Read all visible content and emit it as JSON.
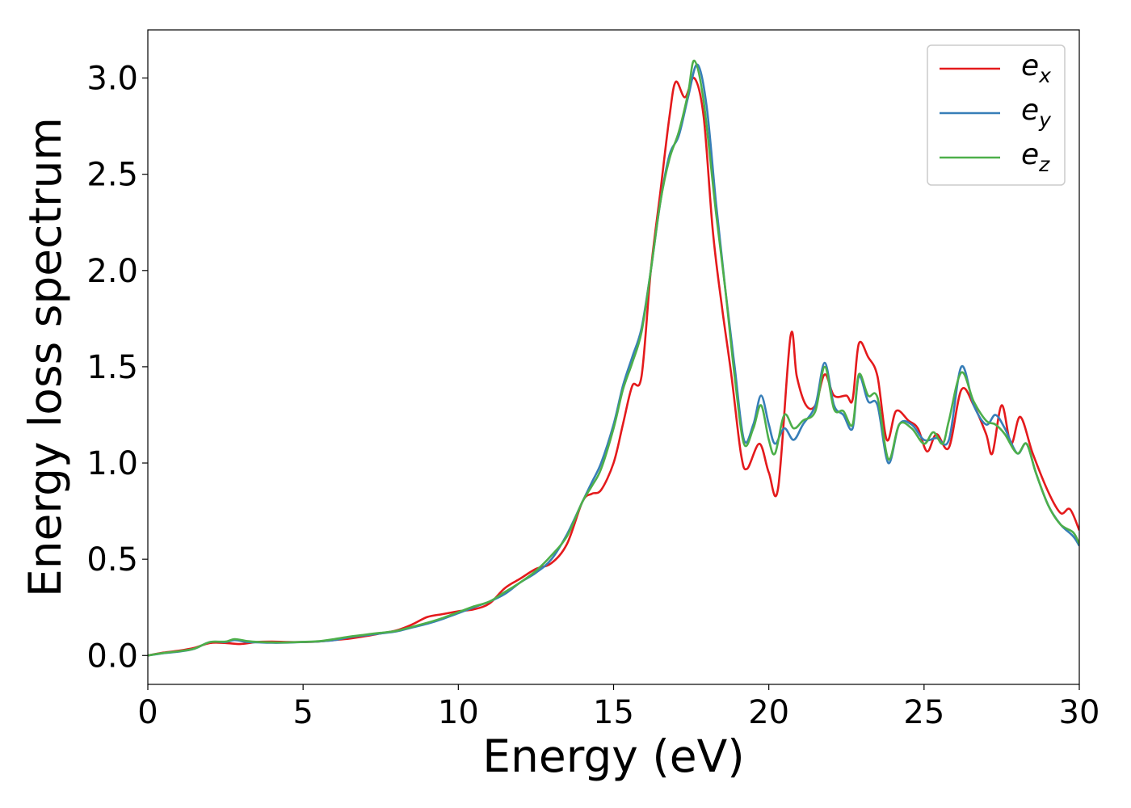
{
  "chart_data": {
    "type": "line",
    "xlabel": "Energy (eV)",
    "ylabel": "Energy loss spectrum",
    "xlim": [
      0,
      30
    ],
    "ylim": [
      -0.15,
      3.25
    ],
    "xticks": [
      0,
      5,
      10,
      15,
      20,
      25,
      30
    ],
    "xtick_labels": [
      "0",
      "5",
      "10",
      "15",
      "20",
      "25",
      "30"
    ],
    "yticks": [
      0.0,
      0.5,
      1.0,
      1.5,
      2.0,
      2.5,
      3.0
    ],
    "ytick_labels": [
      "0.0",
      "0.5",
      "1.0",
      "1.5",
      "2.0",
      "2.5",
      "3.0"
    ],
    "grid": false,
    "legend_position": "top-right",
    "series": [
      {
        "name": "e_x",
        "label_main": "e",
        "label_sub": "x",
        "color": "#e41a1c",
        "points": [
          [
            0,
            0
          ],
          [
            0.5,
            0.015
          ],
          [
            1,
            0.025
          ],
          [
            1.5,
            0.04
          ],
          [
            2,
            0.065
          ],
          [
            2.5,
            0.065
          ],
          [
            3,
            0.06
          ],
          [
            3.5,
            0.07
          ],
          [
            4,
            0.072
          ],
          [
            4.5,
            0.07
          ],
          [
            5,
            0.07
          ],
          [
            5.5,
            0.073
          ],
          [
            6,
            0.08
          ],
          [
            6.5,
            0.088
          ],
          [
            7,
            0.1
          ],
          [
            7.5,
            0.115
          ],
          [
            8,
            0.13
          ],
          [
            8.5,
            0.16
          ],
          [
            9,
            0.2
          ],
          [
            9.5,
            0.215
          ],
          [
            10,
            0.23
          ],
          [
            10.5,
            0.24
          ],
          [
            11,
            0.27
          ],
          [
            11.5,
            0.35
          ],
          [
            12,
            0.4
          ],
          [
            12.5,
            0.45
          ],
          [
            13,
            0.48
          ],
          [
            13.5,
            0.58
          ],
          [
            14,
            0.8
          ],
          [
            14.3,
            0.84
          ],
          [
            14.6,
            0.86
          ],
          [
            15,
            1.0
          ],
          [
            15.3,
            1.2
          ],
          [
            15.6,
            1.4
          ],
          [
            15.9,
            1.45
          ],
          [
            16.2,
            2.0
          ],
          [
            16.5,
            2.4
          ],
          [
            16.8,
            2.8
          ],
          [
            17.0,
            2.98
          ],
          [
            17.3,
            2.9
          ],
          [
            17.6,
            3.0
          ],
          [
            17.9,
            2.8
          ],
          [
            18.2,
            2.2
          ],
          [
            18.5,
            1.8
          ],
          [
            18.8,
            1.45
          ],
          [
            19.1,
            1.05
          ],
          [
            19.3,
            0.97
          ],
          [
            19.7,
            1.1
          ],
          [
            20.0,
            0.95
          ],
          [
            20.3,
            0.87
          ],
          [
            20.7,
            1.66
          ],
          [
            20.9,
            1.45
          ],
          [
            21.2,
            1.3
          ],
          [
            21.5,
            1.3
          ],
          [
            21.8,
            1.46
          ],
          [
            22.1,
            1.35
          ],
          [
            22.5,
            1.35
          ],
          [
            22.7,
            1.33
          ],
          [
            22.9,
            1.62
          ],
          [
            23.2,
            1.55
          ],
          [
            23.5,
            1.45
          ],
          [
            23.8,
            1.12
          ],
          [
            24.1,
            1.27
          ],
          [
            24.5,
            1.22
          ],
          [
            24.8,
            1.18
          ],
          [
            25.1,
            1.06
          ],
          [
            25.4,
            1.15
          ],
          [
            25.8,
            1.08
          ],
          [
            26.2,
            1.38
          ],
          [
            26.6,
            1.3
          ],
          [
            27.0,
            1.15
          ],
          [
            27.2,
            1.05
          ],
          [
            27.5,
            1.3
          ],
          [
            27.8,
            1.1
          ],
          [
            28.1,
            1.24
          ],
          [
            28.5,
            1.05
          ],
          [
            29.0,
            0.85
          ],
          [
            29.4,
            0.74
          ],
          [
            29.7,
            0.76
          ],
          [
            30,
            0.65
          ]
        ]
      },
      {
        "name": "e_y",
        "label_main": "e",
        "label_sub": "y",
        "color": "#377eb8",
        "points": [
          [
            0,
            0
          ],
          [
            0.5,
            0.012
          ],
          [
            1,
            0.02
          ],
          [
            1.5,
            0.035
          ],
          [
            2,
            0.07
          ],
          [
            2.5,
            0.07
          ],
          [
            2.8,
            0.08
          ],
          [
            3.2,
            0.07
          ],
          [
            3.6,
            0.068
          ],
          [
            4,
            0.066
          ],
          [
            4.5,
            0.067
          ],
          [
            5,
            0.07
          ],
          [
            5.5,
            0.073
          ],
          [
            6,
            0.08
          ],
          [
            6.5,
            0.095
          ],
          [
            7,
            0.105
          ],
          [
            7.5,
            0.115
          ],
          [
            8,
            0.125
          ],
          [
            8.5,
            0.145
          ],
          [
            9,
            0.165
          ],
          [
            9.5,
            0.19
          ],
          [
            10,
            0.22
          ],
          [
            10.5,
            0.25
          ],
          [
            11,
            0.28
          ],
          [
            11.5,
            0.32
          ],
          [
            12,
            0.38
          ],
          [
            12.5,
            0.43
          ],
          [
            13,
            0.5
          ],
          [
            13.5,
            0.63
          ],
          [
            14,
            0.8
          ],
          [
            14.3,
            0.9
          ],
          [
            14.6,
            1.0
          ],
          [
            15,
            1.2
          ],
          [
            15.3,
            1.4
          ],
          [
            15.6,
            1.55
          ],
          [
            15.9,
            1.7
          ],
          [
            16.2,
            2.0
          ],
          [
            16.5,
            2.35
          ],
          [
            16.8,
            2.6
          ],
          [
            17.1,
            2.7
          ],
          [
            17.4,
            2.9
          ],
          [
            17.7,
            3.07
          ],
          [
            18.0,
            2.85
          ],
          [
            18.3,
            2.35
          ],
          [
            18.6,
            1.9
          ],
          [
            18.9,
            1.5
          ],
          [
            19.2,
            1.12
          ],
          [
            19.5,
            1.2
          ],
          [
            19.75,
            1.35
          ],
          [
            20.0,
            1.2
          ],
          [
            20.2,
            1.1
          ],
          [
            20.5,
            1.18
          ],
          [
            20.8,
            1.12
          ],
          [
            21.1,
            1.2
          ],
          [
            21.5,
            1.3
          ],
          [
            21.8,
            1.52
          ],
          [
            22.1,
            1.3
          ],
          [
            22.4,
            1.25
          ],
          [
            22.7,
            1.18
          ],
          [
            22.9,
            1.45
          ],
          [
            23.2,
            1.32
          ],
          [
            23.5,
            1.3
          ],
          [
            23.85,
            1.0
          ],
          [
            24.2,
            1.2
          ],
          [
            24.6,
            1.2
          ],
          [
            25.0,
            1.12
          ],
          [
            25.4,
            1.13
          ],
          [
            25.8,
            1.12
          ],
          [
            26.2,
            1.5
          ],
          [
            26.6,
            1.3
          ],
          [
            27.0,
            1.2
          ],
          [
            27.3,
            1.25
          ],
          [
            27.6,
            1.18
          ],
          [
            28.0,
            1.05
          ],
          [
            28.3,
            1.1
          ],
          [
            28.6,
            0.95
          ],
          [
            29.0,
            0.78
          ],
          [
            29.4,
            0.68
          ],
          [
            29.8,
            0.62
          ],
          [
            30,
            0.57
          ]
        ]
      },
      {
        "name": "e_z",
        "label_main": "e",
        "label_sub": "z",
        "color": "#4daf4a",
        "points": [
          [
            0,
            0
          ],
          [
            0.5,
            0.013
          ],
          [
            1,
            0.022
          ],
          [
            1.5,
            0.036
          ],
          [
            2,
            0.07
          ],
          [
            2.5,
            0.072
          ],
          [
            2.8,
            0.085
          ],
          [
            3.2,
            0.075
          ],
          [
            3.6,
            0.07
          ],
          [
            4,
            0.068
          ],
          [
            4.5,
            0.068
          ],
          [
            5,
            0.071
          ],
          [
            5.5,
            0.074
          ],
          [
            6,
            0.085
          ],
          [
            6.5,
            0.098
          ],
          [
            7,
            0.108
          ],
          [
            7.5,
            0.118
          ],
          [
            8,
            0.128
          ],
          [
            8.5,
            0.148
          ],
          [
            9,
            0.17
          ],
          [
            9.5,
            0.195
          ],
          [
            10,
            0.225
          ],
          [
            10.5,
            0.255
          ],
          [
            11,
            0.28
          ],
          [
            11.5,
            0.33
          ],
          [
            12,
            0.38
          ],
          [
            12.5,
            0.44
          ],
          [
            13,
            0.52
          ],
          [
            13.5,
            0.62
          ],
          [
            14,
            0.8
          ],
          [
            14.3,
            0.88
          ],
          [
            14.6,
            0.97
          ],
          [
            15,
            1.18
          ],
          [
            15.3,
            1.38
          ],
          [
            15.6,
            1.52
          ],
          [
            15.9,
            1.68
          ],
          [
            16.2,
            2.0
          ],
          [
            16.5,
            2.35
          ],
          [
            16.8,
            2.58
          ],
          [
            17.1,
            2.72
          ],
          [
            17.4,
            2.92
          ],
          [
            17.6,
            3.09
          ],
          [
            17.9,
            2.88
          ],
          [
            18.3,
            2.3
          ],
          [
            18.6,
            1.9
          ],
          [
            18.9,
            1.45
          ],
          [
            19.2,
            1.1
          ],
          [
            19.5,
            1.18
          ],
          [
            19.75,
            1.3
          ],
          [
            20.0,
            1.12
          ],
          [
            20.2,
            1.05
          ],
          [
            20.5,
            1.25
          ],
          [
            20.8,
            1.18
          ],
          [
            21.1,
            1.22
          ],
          [
            21.5,
            1.27
          ],
          [
            21.8,
            1.5
          ],
          [
            22.1,
            1.28
          ],
          [
            22.4,
            1.27
          ],
          [
            22.7,
            1.2
          ],
          [
            22.9,
            1.46
          ],
          [
            23.2,
            1.35
          ],
          [
            23.5,
            1.34
          ],
          [
            23.85,
            1.02
          ],
          [
            24.2,
            1.2
          ],
          [
            24.6,
            1.18
          ],
          [
            25.0,
            1.1
          ],
          [
            25.3,
            1.16
          ],
          [
            25.6,
            1.1
          ],
          [
            25.8,
            1.22
          ],
          [
            26.2,
            1.47
          ],
          [
            26.6,
            1.32
          ],
          [
            27.0,
            1.22
          ],
          [
            27.3,
            1.2
          ],
          [
            27.6,
            1.15
          ],
          [
            28.0,
            1.05
          ],
          [
            28.3,
            1.1
          ],
          [
            28.6,
            0.95
          ],
          [
            29.0,
            0.78
          ],
          [
            29.4,
            0.68
          ],
          [
            29.8,
            0.64
          ],
          [
            30,
            0.58
          ]
        ]
      }
    ]
  }
}
